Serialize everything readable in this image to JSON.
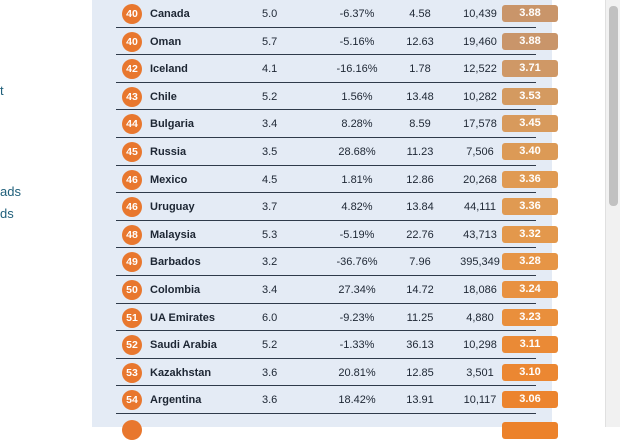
{
  "nav_fragments": [
    "t",
    "ads",
    "ds"
  ],
  "rows": [
    {
      "rank": "40",
      "country": "Canada",
      "c1": "5.0",
      "c2": "-6.37%",
      "c3": "4.58",
      "c4": "10,439",
      "score": "3.88",
      "score_color": "#c9956a"
    },
    {
      "rank": "40",
      "country": "Oman",
      "c1": "5.7",
      "c2": "-5.16%",
      "c3": "12.63",
      "c4": "19,460",
      "score": "3.88",
      "score_color": "#c9956a"
    },
    {
      "rank": "42",
      "country": "Iceland",
      "c1": "4.1",
      "c2": "-16.16%",
      "c3": "1.78",
      "c4": "12,522",
      "score": "3.71",
      "score_color": "#cf9866"
    },
    {
      "rank": "43",
      "country": "Chile",
      "c1": "5.2",
      "c2": "1.56%",
      "c3": "13.48",
      "c4": "10,282",
      "score": "3.53",
      "score_color": "#d49a60"
    },
    {
      "rank": "44",
      "country": "Bulgaria",
      "c1": "3.4",
      "c2": "8.28%",
      "c3": "8.59",
      "c4": "17,578",
      "score": "3.45",
      "score_color": "#d89a5c"
    },
    {
      "rank": "45",
      "country": "Russia",
      "c1": "3.5",
      "c2": "28.68%",
      "c3": "11.23",
      "c4": "7,506",
      "score": "3.40",
      "score_color": "#dc9a56"
    },
    {
      "rank": "46",
      "country": "Mexico",
      "c1": "4.5",
      "c2": "1.81%",
      "c3": "12.86",
      "c4": "20,268",
      "score": "3.36",
      "score_color": "#e09a52"
    },
    {
      "rank": "46",
      "country": "Uruguay",
      "c1": "3.7",
      "c2": "4.82%",
      "c3": "13.84",
      "c4": "44,111",
      "score": "3.36",
      "score_color": "#e09a52"
    },
    {
      "rank": "48",
      "country": "Malaysia",
      "c1": "5.3",
      "c2": "-5.19%",
      "c3": "22.76",
      "c4": "43,713",
      "score": "3.32",
      "score_color": "#e3984c"
    },
    {
      "rank": "49",
      "country": "Barbados",
      "c1": "3.2",
      "c2": "-36.76%",
      "c3": "7.96",
      "c4": "395,349",
      "score": "3.28",
      "score_color": "#e69546"
    },
    {
      "rank": "50",
      "country": "Colombia",
      "c1": "3.4",
      "c2": "27.34%",
      "c3": "14.72",
      "c4": "18,086",
      "score": "3.24",
      "score_color": "#e89140"
    },
    {
      "rank": "51",
      "country": "UA Emirates",
      "c1": "6.0",
      "c2": "-9.23%",
      "c3": "11.25",
      "c4": "4,880",
      "score": "3.23",
      "score_color": "#e98f3c"
    },
    {
      "rank": "52",
      "country": "Saudi Arabia",
      "c1": "5.2",
      "c2": "-1.33%",
      "c3": "36.13",
      "c4": "10,298",
      "score": "3.11",
      "score_color": "#ea8a36"
    },
    {
      "rank": "53",
      "country": "Kazakhstan",
      "c1": "3.6",
      "c2": "20.81%",
      "c3": "12.85",
      "c4": "3,501",
      "score": "3.10",
      "score_color": "#eb8732"
    },
    {
      "rank": "54",
      "country": "Argentina",
      "c1": "3.6",
      "c2": "18.42%",
      "c3": "13.91",
      "c4": "10,117",
      "score": "3.06",
      "score_color": "#ec842e"
    }
  ],
  "colors": {
    "rank_badge": "#e8772e",
    "panel_bg": "#e4ebf5",
    "nav_text": "#1f5f7a"
  }
}
